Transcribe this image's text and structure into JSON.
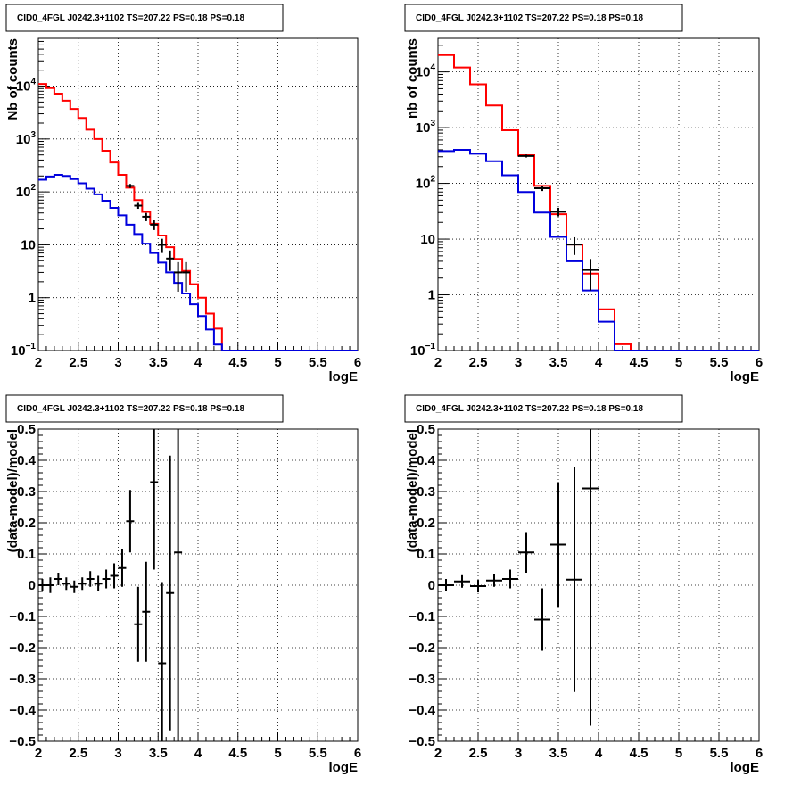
{
  "colors": {
    "data": "#000000",
    "model": "#ff0000",
    "component": "#0000dd",
    "grid": "#000000"
  },
  "chart_data": [
    {
      "type": "step-histogram",
      "title": "CID0_4FGL J0242.3+1102 TS=207.22 PS=0.18 PS=0.18",
      "xlabel": "logE",
      "ylabel": "Nb of counts",
      "xlim": [
        2,
        6
      ],
      "ylim": [
        0.1,
        80000
      ],
      "yscale": "log",
      "grid": true,
      "xticks": [
        "2",
        "2.5",
        "3",
        "3.5",
        "4",
        "4.5",
        "5",
        "5.5",
        "6"
      ],
      "yticks": [
        {
          "v": 0.1,
          "base": "10",
          "exp": "−1"
        },
        {
          "v": 1,
          "text": "1"
        },
        {
          "v": 10,
          "text": "10"
        },
        {
          "v": 100,
          "base": "10",
          "exp": "2"
        },
        {
          "v": 1000,
          "base": "10",
          "exp": "3"
        },
        {
          "v": 10000,
          "base": "10",
          "exp": "4"
        }
      ],
      "bin_edges": [
        2.0,
        2.1,
        2.2,
        2.3,
        2.4,
        2.5,
        2.6,
        2.7,
        2.8,
        2.9,
        3.0,
        3.1,
        3.2,
        3.3,
        3.4,
        3.5,
        3.6,
        3.7,
        3.8,
        3.9,
        4.0,
        4.1,
        4.2,
        4.3,
        4.4,
        4.5,
        4.6,
        4.7,
        4.8,
        4.9,
        5.0,
        5.1,
        5.2,
        5.3,
        5.4,
        5.5,
        5.6,
        5.7,
        5.8,
        5.9,
        6.0
      ],
      "series": [
        {
          "name": "model",
          "color": "#ff0000",
          "values": [
            11000,
            9200,
            7200,
            5300,
            3700,
            2500,
            1500,
            1000,
            600,
            360,
            210,
            120,
            70,
            42,
            25,
            15,
            9,
            5.4,
            3.2,
            1.8,
            1.0,
            0.5,
            0.26,
            0.1,
            0.1,
            0.1,
            0.1,
            0.1,
            0.1,
            0.1,
            0.1,
            0.1,
            0.1,
            0.1,
            0.1,
            0.1,
            0.1,
            0.1,
            0.1,
            0.1
          ]
        },
        {
          "name": "component",
          "color": "#0000dd",
          "values": [
            170,
            195,
            210,
            200,
            175,
            145,
            115,
            90,
            68,
            50,
            36,
            24,
            16,
            10.5,
            7,
            4.6,
            3.0,
            1.9,
            1.2,
            0.75,
            0.45,
            0.25,
            0.13,
            0.1,
            0.1,
            0.1,
            0.1,
            0.1,
            0.1,
            0.1,
            0.1,
            0.1,
            0.1,
            0.1,
            0.1,
            0.1,
            0.1,
            0.1,
            0.1,
            0.1
          ]
        }
      ],
      "data_points": [
        {
          "x": 3.15,
          "y": 130,
          "xerr": 0.05,
          "yerr": [
            11,
            11
          ]
        },
        {
          "x": 3.25,
          "y": 55,
          "xerr": 0.05,
          "yerr": [
            7,
            7
          ]
        },
        {
          "x": 3.35,
          "y": 34,
          "xerr": 0.05,
          "yerr": [
            6,
            6
          ]
        },
        {
          "x": 3.45,
          "y": 24,
          "xerr": 0.05,
          "yerr": [
            5,
            5
          ]
        },
        {
          "x": 3.55,
          "y": 10,
          "xerr": 0.05,
          "yerr": [
            3,
            3
          ]
        },
        {
          "x": 3.65,
          "y": 5.5,
          "xerr": 0.05,
          "yerr": [
            2.3,
            2.3
          ]
        },
        {
          "x": 3.75,
          "y": 3,
          "xerr": 0.05,
          "yerr": [
            1.7,
            1.7
          ]
        },
        {
          "x": 3.85,
          "y": 3,
          "xerr": 0.05,
          "yerr": [
            1.7,
            1.7
          ]
        }
      ]
    },
    {
      "type": "step-histogram",
      "title": "CID0_4FGL J0242.3+1102 TS=207.22 PS=0.18 PS=0.18",
      "xlabel": "logE",
      "ylabel": "nb of counts",
      "xlim": [
        2,
        6
      ],
      "ylim": [
        0.1,
        40000
      ],
      "yscale": "log",
      "grid": true,
      "xticks": [
        "2",
        "2.5",
        "3",
        "3.5",
        "4",
        "4.5",
        "5",
        "5.5",
        "6"
      ],
      "yticks": [
        {
          "v": 0.1,
          "base": "10",
          "exp": "−1"
        },
        {
          "v": 1,
          "text": "1"
        },
        {
          "v": 10,
          "text": "10"
        },
        {
          "v": 100,
          "base": "10",
          "exp": "2"
        },
        {
          "v": 1000,
          "base": "10",
          "exp": "3"
        },
        {
          "v": 10000,
          "base": "10",
          "exp": "4"
        }
      ],
      "bin_edges": [
        2.0,
        2.2,
        2.4,
        2.6,
        2.8,
        3.0,
        3.2,
        3.4,
        3.6,
        3.8,
        4.0,
        4.2,
        4.4,
        4.6,
        4.8,
        5.0,
        5.2,
        5.4,
        5.6,
        5.8,
        6.0
      ],
      "series": [
        {
          "name": "model",
          "color": "#ff0000",
          "values": [
            20000,
            12000,
            6000,
            2500,
            900,
            320,
            90,
            28,
            8,
            2.4,
            0.55,
            0.13,
            0.1,
            0.1,
            0.1,
            0.1,
            0.1,
            0.1,
            0.1,
            0.1
          ]
        },
        {
          "name": "component",
          "color": "#0000dd",
          "values": [
            380,
            400,
            340,
            250,
            140,
            70,
            30,
            11,
            4,
            1.2,
            0.33,
            0.1,
            0.1,
            0.1,
            0.1,
            0.1,
            0.1,
            0.1,
            0.1,
            0.1
          ]
        }
      ],
      "data_points": [
        {
          "x": 3.1,
          "y": 310,
          "xerr": 0.1,
          "yerr": [
            18,
            18
          ]
        },
        {
          "x": 3.3,
          "y": 82,
          "xerr": 0.1,
          "yerr": [
            9,
            9
          ]
        },
        {
          "x": 3.5,
          "y": 31,
          "xerr": 0.1,
          "yerr": [
            5.5,
            5.5
          ]
        },
        {
          "x": 3.7,
          "y": 8,
          "xerr": 0.1,
          "yerr": [
            2.8,
            2.8
          ]
        },
        {
          "x": 3.9,
          "y": 2.8,
          "xerr": 0.1,
          "yerr": [
            1.6,
            1.6
          ]
        }
      ]
    },
    {
      "type": "scatter",
      "title": "CID0_4FGL J0242.3+1102 TS=207.22 PS=0.18 PS=0.18",
      "xlabel": "logE",
      "ylabel": "(data-model)/model",
      "xlim": [
        2,
        6
      ],
      "ylim": [
        -0.5,
        0.5
      ],
      "yscale": "linear",
      "grid": true,
      "xticks": [
        "2",
        "2.5",
        "3",
        "3.5",
        "4",
        "4.5",
        "5",
        "5.5",
        "6"
      ],
      "yticks": [
        {
          "v": -0.5,
          "text": "−0.5"
        },
        {
          "v": -0.4,
          "text": "−0.4"
        },
        {
          "v": -0.3,
          "text": "−0.3"
        },
        {
          "v": -0.2,
          "text": "−0.2"
        },
        {
          "v": -0.1,
          "text": "−0.1"
        },
        {
          "v": 0,
          "text": "0"
        },
        {
          "v": 0.1,
          "text": "0.1"
        },
        {
          "v": 0.2,
          "text": "0.2"
        },
        {
          "v": 0.3,
          "text": "0.3"
        },
        {
          "v": 0.4,
          "text": "0.4"
        },
        {
          "v": 0.5,
          "text": "0.5"
        }
      ],
      "data_points": [
        {
          "x": 2.05,
          "y": 0.0,
          "xerr": 0.05,
          "yerr": [
            0.02,
            0.02
          ]
        },
        {
          "x": 2.15,
          "y": 0.0,
          "xerr": 0.05,
          "yerr": [
            0.025,
            0.025
          ]
        },
        {
          "x": 2.25,
          "y": 0.02,
          "xerr": 0.05,
          "yerr": [
            0.02,
            0.02
          ]
        },
        {
          "x": 2.35,
          "y": 0.005,
          "xerr": 0.05,
          "yerr": [
            0.02,
            0.02
          ]
        },
        {
          "x": 2.45,
          "y": -0.005,
          "xerr": 0.05,
          "yerr": [
            0.02,
            0.02
          ]
        },
        {
          "x": 2.55,
          "y": 0.005,
          "xerr": 0.05,
          "yerr": [
            0.02,
            0.02
          ]
        },
        {
          "x": 2.65,
          "y": 0.02,
          "xerr": 0.05,
          "yerr": [
            0.025,
            0.025
          ]
        },
        {
          "x": 2.75,
          "y": 0.005,
          "xerr": 0.05,
          "yerr": [
            0.025,
            0.025
          ]
        },
        {
          "x": 2.85,
          "y": 0.02,
          "xerr": 0.05,
          "yerr": [
            0.03,
            0.03
          ]
        },
        {
          "x": 2.95,
          "y": 0.03,
          "xerr": 0.05,
          "yerr": [
            0.04,
            0.04
          ]
        },
        {
          "x": 3.05,
          "y": 0.055,
          "xerr": 0.05,
          "yerr": [
            0.06,
            0.06
          ]
        },
        {
          "x": 3.15,
          "y": 0.205,
          "xerr": 0.05,
          "yerr": [
            0.1,
            0.1
          ]
        },
        {
          "x": 3.25,
          "y": -0.125,
          "xerr": 0.05,
          "yerr": [
            0.12,
            0.12
          ]
        },
        {
          "x": 3.35,
          "y": -0.085,
          "xerr": 0.05,
          "yerr": [
            0.16,
            0.16
          ]
        },
        {
          "x": 3.45,
          "y": 0.33,
          "xerr": 0.05,
          "yerr": [
            0.28,
            0.28
          ]
        },
        {
          "x": 3.55,
          "y": -0.25,
          "xerr": 0.05,
          "yerr": [
            0.26,
            0.26
          ]
        },
        {
          "x": 3.65,
          "y": -0.025,
          "xerr": 0.05,
          "yerr": [
            0.44,
            0.44
          ]
        },
        {
          "x": 3.75,
          "y": 0.105,
          "xerr": 0.05,
          "yerr": [
            0.65,
            0.65
          ]
        }
      ]
    },
    {
      "type": "scatter",
      "title": "CID0_4FGL J0242.3+1102 TS=207.22 PS=0.18 PS=0.18",
      "xlabel": "logE",
      "ylabel": "(data-model)/model",
      "xlim": [
        2,
        6
      ],
      "ylim": [
        -0.5,
        0.5
      ],
      "yscale": "linear",
      "grid": true,
      "xticks": [
        "2",
        "2.5",
        "3",
        "3.5",
        "4",
        "4.5",
        "5",
        "5.5",
        "6"
      ],
      "yticks": [
        {
          "v": -0.5,
          "text": "−0.5"
        },
        {
          "v": -0.4,
          "text": "−0.4"
        },
        {
          "v": -0.3,
          "text": "−0.3"
        },
        {
          "v": -0.2,
          "text": "−0.2"
        },
        {
          "v": -0.1,
          "text": "−0.1"
        },
        {
          "v": 0,
          "text": "0"
        },
        {
          "v": 0.1,
          "text": "0.1"
        },
        {
          "v": 0.2,
          "text": "0.2"
        },
        {
          "v": 0.3,
          "text": "0.3"
        },
        {
          "v": 0.4,
          "text": "0.4"
        },
        {
          "v": 0.5,
          "text": "0.5"
        }
      ],
      "data_points": [
        {
          "x": 2.1,
          "y": 0.0,
          "xerr": 0.1,
          "yerr": [
            0.02,
            0.02
          ]
        },
        {
          "x": 2.3,
          "y": 0.012,
          "xerr": 0.1,
          "yerr": [
            0.02,
            0.02
          ]
        },
        {
          "x": 2.5,
          "y": -0.003,
          "xerr": 0.1,
          "yerr": [
            0.02,
            0.02
          ]
        },
        {
          "x": 2.7,
          "y": 0.015,
          "xerr": 0.1,
          "yerr": [
            0.02,
            0.02
          ]
        },
        {
          "x": 2.9,
          "y": 0.02,
          "xerr": 0.1,
          "yerr": [
            0.03,
            0.03
          ]
        },
        {
          "x": 3.1,
          "y": 0.105,
          "xerr": 0.1,
          "yerr": [
            0.065,
            0.065
          ]
        },
        {
          "x": 3.3,
          "y": -0.11,
          "xerr": 0.1,
          "yerr": [
            0.1,
            0.1
          ]
        },
        {
          "x": 3.5,
          "y": 0.13,
          "xerr": 0.1,
          "yerr": [
            0.2,
            0.2
          ]
        },
        {
          "x": 3.7,
          "y": 0.018,
          "xerr": 0.1,
          "yerr": [
            0.36,
            0.36
          ]
        },
        {
          "x": 3.9,
          "y": 0.31,
          "xerr": 0.1,
          "yerr": [
            0.76,
            0.76
          ]
        }
      ]
    }
  ]
}
